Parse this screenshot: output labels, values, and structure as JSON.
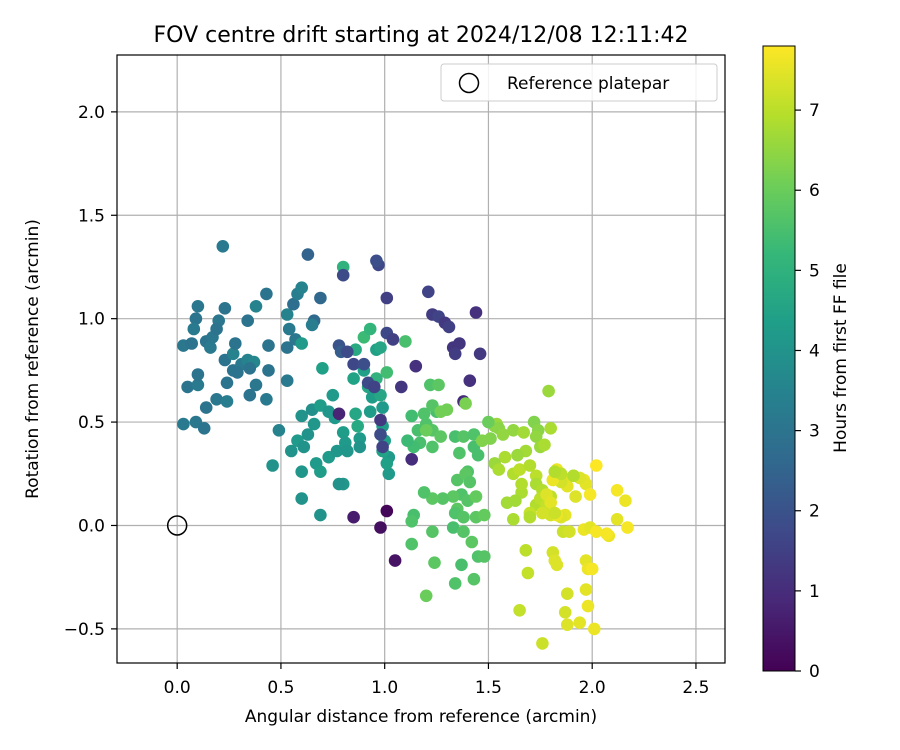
{
  "chart_data": {
    "type": "scatter",
    "title": "FOV centre drift starting at 2024/12/08 12:11:42",
    "xlabel": "Angular distance from reference (arcmin)",
    "ylabel": "Rotation from reference (arcmin)",
    "xlim": [
      -0.29,
      2.64
    ],
    "ylim": [
      -0.665,
      2.275
    ],
    "xticks": [
      0.0,
      0.5,
      1.0,
      1.5,
      2.0,
      2.5
    ],
    "xtick_labels": [
      "0.0",
      "0.5",
      "1.0",
      "1.5",
      "2.0",
      "2.5"
    ],
    "yticks": [
      -0.5,
      0.0,
      0.5,
      1.0,
      1.5,
      2.0
    ],
    "ytick_labels": [
      "−0.5",
      "0.0",
      "0.5",
      "1.0",
      "1.5",
      "2.0"
    ],
    "grid": true,
    "legend": {
      "position": "top-right",
      "entries": [
        "Reference platepar"
      ]
    },
    "reference_point": {
      "x": 0.0,
      "y": 0.0,
      "marker": "open-circle"
    },
    "colorbar": {
      "label": "Hours from first FF file",
      "colormap": "viridis",
      "range": [
        0,
        7.8
      ],
      "ticks": [
        0,
        1,
        2,
        3,
        4,
        5,
        6,
        7
      ],
      "tick_labels": [
        "0",
        "1",
        "2",
        "3",
        "4",
        "5",
        "6",
        "7"
      ]
    },
    "colormap_stops": [
      "#440154",
      "#482878",
      "#3e4989",
      "#31688e",
      "#26828e",
      "#1f9e89",
      "#35b779",
      "#6ece58",
      "#b5de2b",
      "#fde725"
    ],
    "points": [
      [
        0.22,
        1.35,
        3.2
      ],
      [
        0.1,
        1.06,
        3.1
      ],
      [
        0.23,
        1.05,
        3.0
      ],
      [
        0.2,
        0.99,
        3.1
      ],
      [
        0.09,
        1.0,
        3.0
      ],
      [
        0.08,
        0.95,
        3.2
      ],
      [
        0.03,
        0.87,
        3.1
      ],
      [
        0.07,
        0.88,
        3.0
      ],
      [
        0.14,
        0.89,
        3.0
      ],
      [
        0.17,
        0.91,
        3.1
      ],
      [
        0.19,
        0.95,
        3.0
      ],
      [
        0.16,
        0.86,
        3.2
      ],
      [
        0.23,
        0.8,
        3.0
      ],
      [
        0.27,
        0.83,
        3.5
      ],
      [
        0.28,
        0.88,
        3.0
      ],
      [
        0.27,
        0.75,
        3.0
      ],
      [
        0.31,
        0.78,
        3.2
      ],
      [
        0.34,
        0.8,
        3.5
      ],
      [
        0.37,
        0.79,
        3.6
      ],
      [
        0.35,
        0.76,
        3.0
      ],
      [
        0.05,
        0.67,
        3.0
      ],
      [
        0.1,
        0.68,
        3.2
      ],
      [
        0.1,
        0.73,
        3.0
      ],
      [
        0.24,
        0.69,
        3.0
      ],
      [
        0.38,
        0.68,
        3.1
      ],
      [
        0.14,
        0.57,
        3.0
      ],
      [
        0.19,
        0.61,
        3.1
      ],
      [
        0.24,
        0.6,
        3.3
      ],
      [
        0.35,
        0.63,
        3.0
      ],
      [
        0.43,
        0.61,
        3.2
      ],
      [
        0.03,
        0.49,
        3.2
      ],
      [
        0.09,
        0.5,
        3.1
      ],
      [
        0.13,
        0.47,
        3.0
      ],
      [
        0.34,
        0.99,
        3.0
      ],
      [
        0.38,
        1.06,
        3.5
      ],
      [
        0.43,
        1.12,
        3.0
      ],
      [
        0.44,
        0.75,
        3.0
      ],
      [
        0.44,
        0.87,
        3.0
      ],
      [
        0.29,
        0.74,
        3.0
      ],
      [
        0.53,
        0.7,
        3.2
      ],
      [
        0.53,
        1.02,
        3.5
      ],
      [
        0.54,
        0.95,
        3.2
      ],
      [
        0.56,
        1.07,
        2.8
      ],
      [
        0.58,
        1.12,
        3.3
      ],
      [
        0.57,
        0.9,
        3.1
      ],
      [
        0.53,
        0.86,
        3.0
      ],
      [
        0.6,
        1.15,
        3.5
      ],
      [
        0.63,
        1.31,
        2.5
      ],
      [
        0.66,
        0.99,
        2.7
      ],
      [
        0.65,
        0.97,
        3.3
      ],
      [
        0.69,
        1.1,
        2.6
      ],
      [
        0.6,
        0.88,
        4.2
      ],
      [
        0.6,
        0.53,
        4.0
      ],
      [
        0.65,
        0.56,
        3.9
      ],
      [
        0.66,
        0.49,
        4.1
      ],
      [
        0.63,
        0.44,
        4.0
      ],
      [
        0.58,
        0.41,
        4.2
      ],
      [
        0.61,
        0.38,
        4.0
      ],
      [
        0.55,
        0.36,
        4.0
      ],
      [
        0.49,
        0.46,
        3.5
      ],
      [
        0.46,
        0.29,
        4.0
      ],
      [
        0.6,
        0.26,
        4.1
      ],
      [
        0.67,
        0.3,
        4.2
      ],
      [
        0.69,
        0.26,
        4.3
      ],
      [
        0.73,
        0.33,
        4.2
      ],
      [
        0.77,
        0.36,
        4.1
      ],
      [
        0.8,
        0.2,
        4.1
      ],
      [
        0.78,
        0.2,
        4.0
      ],
      [
        0.6,
        0.13,
        4.0
      ],
      [
        0.69,
        0.05,
        4.0
      ],
      [
        0.7,
        0.76,
        4.4
      ],
      [
        0.69,
        0.58,
        4.3
      ],
      [
        0.73,
        0.55,
        4.1
      ],
      [
        0.75,
        0.63,
        4.2
      ],
      [
        0.76,
        0.52,
        4.2
      ],
      [
        0.8,
        0.45,
        4.3
      ],
      [
        0.81,
        0.4,
        4.2
      ],
      [
        0.82,
        0.36,
        4.1
      ],
      [
        0.86,
        0.54,
        4.6
      ],
      [
        0.87,
        0.48,
        4.7
      ],
      [
        0.88,
        0.42,
        4.2
      ],
      [
        0.88,
        0.38,
        4.0
      ],
      [
        0.85,
        0.71,
        4.5
      ],
      [
        0.86,
        0.85,
        4.7
      ],
      [
        0.9,
        0.75,
        4.4
      ],
      [
        0.92,
        0.67,
        4.6
      ],
      [
        0.93,
        0.55,
        4.3
      ],
      [
        0.94,
        0.62,
        4.3
      ],
      [
        0.96,
        0.85,
        4.4
      ],
      [
        0.98,
        0.86,
        4.6
      ],
      [
        0.96,
        0.71,
        5.0
      ],
      [
        0.98,
        0.63,
        4.6
      ],
      [
        0.99,
        0.57,
        4.2
      ],
      [
        0.99,
        0.48,
        4.3
      ],
      [
        1.0,
        0.41,
        4.4
      ],
      [
        1.02,
        0.33,
        4.2
      ],
      [
        1.02,
        0.25,
        4.2
      ],
      [
        1.01,
        0.3,
        4.4
      ],
      [
        0.99,
        0.36,
        4.5
      ],
      [
        0.8,
        1.25,
        5.0
      ],
      [
        0.8,
        1.21,
        1.8
      ],
      [
        0.78,
        0.87,
        2.0
      ],
      [
        0.79,
        0.84,
        2.3
      ],
      [
        0.82,
        0.84,
        1.8
      ],
      [
        0.85,
        0.78,
        1.7
      ],
      [
        0.9,
        0.78,
        1.9
      ],
      [
        0.92,
        0.69,
        1.8
      ],
      [
        0.95,
        0.67,
        1.6
      ],
      [
        0.97,
        1.26,
        1.7
      ],
      [
        0.96,
        1.28,
        1.9
      ],
      [
        1.01,
        1.1,
        1.5
      ],
      [
        1.01,
        0.93,
        1.7
      ],
      [
        1.04,
        0.9,
        1.5
      ],
      [
        1.08,
        0.67,
        1.2
      ],
      [
        0.98,
        0.51,
        1.3
      ],
      [
        0.98,
        0.44,
        1.8
      ],
      [
        0.99,
        0.38,
        1.6
      ],
      [
        0.78,
        0.54,
        0.8
      ],
      [
        0.85,
        0.04,
        0.6
      ],
      [
        0.98,
        -0.01,
        0.3
      ],
      [
        1.01,
        0.07,
        0.1
      ],
      [
        1.05,
        -0.17,
        0.4
      ],
      [
        1.13,
        0.32,
        1.0
      ],
      [
        1.15,
        0.77,
        1.1
      ],
      [
        1.21,
        1.13,
        1.6
      ],
      [
        1.23,
        1.02,
        1.4
      ],
      [
        1.26,
        1.01,
        1.6
      ],
      [
        1.29,
        0.98,
        1.3
      ],
      [
        1.31,
        0.96,
        1.5
      ],
      [
        1.33,
        0.86,
        1.2
      ],
      [
        1.36,
        0.88,
        1.2
      ],
      [
        1.34,
        0.83,
        1.4
      ],
      [
        1.44,
        1.03,
        1.1
      ],
      [
        1.46,
        0.83,
        1.3
      ],
      [
        1.41,
        0.7,
        1.1
      ],
      [
        1.38,
        0.6,
        1.0
      ],
      [
        1.91,
        0.24,
        7.0
      ],
      [
        0.9,
        0.91,
        5.3
      ],
      [
        0.93,
        0.95,
        5.1
      ],
      [
        1.1,
        0.89,
        5.5
      ],
      [
        1.01,
        0.74,
        5.4
      ],
      [
        1.22,
        0.68,
        5.6
      ],
      [
        1.26,
        0.68,
        5.8
      ],
      [
        1.25,
        0.55,
        5.5
      ],
      [
        1.23,
        0.58,
        5.7
      ],
      [
        1.19,
        0.54,
        5.6
      ],
      [
        1.13,
        0.53,
        5.4
      ],
      [
        1.16,
        0.46,
        5.5
      ],
      [
        1.2,
        0.49,
        5.6
      ],
      [
        1.23,
        0.46,
        5.7
      ],
      [
        1.17,
        0.4,
        5.5
      ],
      [
        1.14,
        0.38,
        5.4
      ],
      [
        1.11,
        0.41,
        5.3
      ],
      [
        1.23,
        0.38,
        5.6
      ],
      [
        1.27,
        0.43,
        5.8
      ],
      [
        1.34,
        0.43,
        5.5
      ],
      [
        1.36,
        0.35,
        5.6
      ],
      [
        1.38,
        0.43,
        5.7
      ],
      [
        1.43,
        0.38,
        5.5
      ],
      [
        1.43,
        0.44,
        5.6
      ],
      [
        1.45,
        0.34,
        5.5
      ],
      [
        1.4,
        0.26,
        5.6
      ],
      [
        1.35,
        0.22,
        5.7
      ],
      [
        1.39,
        0.25,
        5.8
      ],
      [
        1.41,
        0.21,
        5.7
      ],
      [
        1.37,
        0.15,
        5.6
      ],
      [
        1.33,
        0.14,
        5.8
      ],
      [
        1.4,
        0.12,
        5.7
      ],
      [
        1.44,
        0.14,
        5.9
      ],
      [
        1.35,
        0.08,
        5.8
      ],
      [
        1.34,
        0.06,
        5.6
      ],
      [
        1.38,
        0.04,
        5.7
      ],
      [
        1.44,
        0.04,
        5.8
      ],
      [
        1.48,
        0.05,
        5.9
      ],
      [
        1.33,
        -0.01,
        5.5
      ],
      [
        1.38,
        -0.03,
        5.7
      ],
      [
        1.42,
        -0.08,
        5.8
      ],
      [
        1.45,
        -0.15,
        5.6
      ],
      [
        1.48,
        -0.15,
        5.7
      ],
      [
        1.37,
        -0.19,
        5.5
      ],
      [
        1.34,
        -0.28,
        5.6
      ],
      [
        1.43,
        -0.26,
        5.7
      ],
      [
        1.28,
        0.13,
        5.7
      ],
      [
        1.23,
        0.13,
        5.8
      ],
      [
        1.19,
        0.16,
        5.6
      ],
      [
        1.14,
        0.05,
        5.5
      ],
      [
        1.13,
        0.02,
        5.6
      ],
      [
        1.23,
        -0.03,
        5.7
      ],
      [
        1.24,
        -0.18,
        5.8
      ],
      [
        1.13,
        -0.09,
        5.6
      ],
      [
        1.2,
        -0.34,
        6.0
      ],
      [
        1.27,
        0.55,
        6.1
      ],
      [
        1.39,
        0.59,
        6.2
      ],
      [
        1.2,
        0.46,
        6.0
      ],
      [
        1.3,
        0.56,
        6.1
      ],
      [
        1.53,
        0.48,
        6.4
      ],
      [
        1.54,
        0.49,
        6.6
      ],
      [
        1.47,
        0.41,
        6.3
      ],
      [
        1.51,
        0.42,
        6.3
      ],
      [
        1.55,
        0.47,
        6.4
      ],
      [
        1.57,
        0.44,
        6.5
      ],
      [
        1.62,
        0.46,
        6.5
      ],
      [
        1.67,
        0.45,
        6.7
      ],
      [
        1.72,
        0.5,
        6.3
      ],
      [
        1.74,
        0.46,
        6.4
      ],
      [
        1.73,
        0.43,
        6.5
      ],
      [
        1.8,
        0.47,
        6.8
      ],
      [
        1.79,
        0.65,
        6.6
      ],
      [
        1.75,
        0.38,
        6.6
      ],
      [
        1.77,
        0.39,
        6.8
      ],
      [
        1.68,
        0.36,
        6.7
      ],
      [
        1.64,
        0.34,
        6.6
      ],
      [
        1.58,
        0.33,
        6.8
      ],
      [
        1.53,
        0.3,
        6.6
      ],
      [
        1.55,
        0.27,
        6.8
      ],
      [
        1.62,
        0.25,
        6.9
      ],
      [
        1.65,
        0.27,
        7.0
      ],
      [
        1.7,
        0.29,
        6.9
      ],
      [
        1.73,
        0.24,
        7.0
      ],
      [
        1.73,
        0.2,
        6.8
      ],
      [
        1.76,
        0.17,
        6.9
      ],
      [
        1.8,
        0.14,
        7.0
      ],
      [
        1.78,
        0.09,
        7.0
      ],
      [
        1.73,
        0.1,
        6.9
      ],
      [
        1.7,
        0.06,
        7.1
      ],
      [
        1.66,
        0.16,
        6.8
      ],
      [
        1.66,
        0.2,
        6.9
      ],
      [
        1.63,
        0.12,
        6.7
      ],
      [
        1.59,
        0.11,
        6.7
      ],
      [
        1.5,
        0.5,
        6.0
      ],
      [
        1.62,
        0.03,
        6.8
      ],
      [
        1.7,
        0.04,
        6.9
      ],
      [
        1.75,
        0.13,
        7.0
      ],
      [
        1.78,
        0.1,
        7.1
      ],
      [
        1.68,
        -0.12,
        7.0
      ],
      [
        1.69,
        -0.23,
        7.1
      ],
      [
        1.65,
        -0.41,
        7.1
      ],
      [
        1.76,
        -0.57,
        7.2
      ],
      [
        1.8,
        0.05,
        7.3
      ],
      [
        1.83,
        0.05,
        7.3
      ],
      [
        1.87,
        0.05,
        7.5
      ],
      [
        1.85,
        0.04,
        7.4
      ],
      [
        1.81,
        -0.13,
        7.3
      ],
      [
        1.83,
        -0.19,
        7.4
      ],
      [
        1.86,
        -0.03,
        7.2
      ],
      [
        1.89,
        -0.03,
        7.3
      ],
      [
        1.88,
        -0.33,
        7.3
      ],
      [
        1.87,
        -0.42,
        7.3
      ],
      [
        1.88,
        -0.48,
        7.4
      ],
      [
        1.94,
        -0.47,
        7.5
      ],
      [
        1.97,
        -0.31,
        7.5
      ],
      [
        1.98,
        -0.39,
        7.6
      ],
      [
        1.97,
        -0.17,
        7.5
      ],
      [
        1.98,
        -0.21,
        7.6
      ],
      [
        2.0,
        -0.21,
        7.7
      ],
      [
        2.01,
        -0.5,
        7.6
      ],
      [
        1.96,
        -0.02,
        7.6
      ],
      [
        1.99,
        -0.01,
        7.5
      ],
      [
        2.02,
        -0.03,
        7.7
      ],
      [
        2.08,
        -0.05,
        7.6
      ],
      [
        2.07,
        -0.04,
        7.7
      ],
      [
        2.12,
        0.03,
        7.5
      ],
      [
        2.16,
        0.12,
        7.6
      ],
      [
        2.17,
        -0.01,
        7.7
      ],
      [
        2.12,
        0.17,
        7.7
      ],
      [
        2.02,
        0.29,
        7.8
      ],
      [
        1.96,
        0.22,
        7.6
      ],
      [
        1.97,
        0.2,
        7.5
      ],
      [
        1.94,
        0.23,
        7.4
      ],
      [
        1.92,
        0.14,
        7.4
      ],
      [
        1.88,
        0.19,
        7.5
      ],
      [
        1.86,
        0.23,
        7.4
      ],
      [
        1.85,
        0.21,
        7.3
      ],
      [
        1.83,
        0.27,
        7.6
      ],
      [
        1.81,
        0.22,
        7.6
      ],
      [
        1.78,
        0.15,
        7.4
      ],
      [
        1.8,
        0.11,
        7.5
      ],
      [
        1.83,
        0.05,
        7.6
      ],
      [
        1.76,
        0.06,
        7.3
      ],
      [
        1.82,
        0.06,
        7.2
      ],
      [
        1.99,
        0.15,
        7.7
      ],
      [
        1.91,
        0.24,
        6.9
      ],
      [
        1.85,
        0.25,
        7.0
      ],
      [
        1.82,
        0.26,
        6.9
      ],
      [
        1.82,
        -0.17,
        7.4
      ]
    ]
  }
}
